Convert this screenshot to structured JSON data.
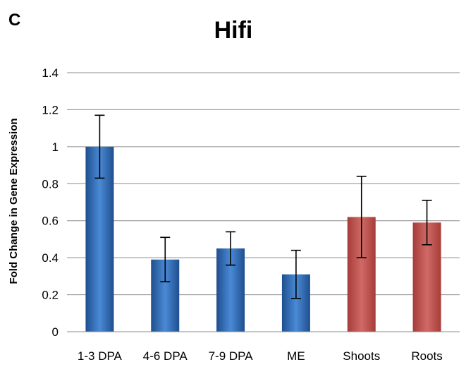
{
  "panel_letter": "C",
  "chart_data": {
    "type": "bar",
    "title": "Hifi",
    "xlabel": "",
    "ylabel": "Fold Change in Gene Expression",
    "categories": [
      "1-3 DPA",
      "4-6 DPA",
      "7-9 DPA",
      "ME",
      "Shoots",
      "Roots"
    ],
    "values": [
      1.0,
      0.39,
      0.45,
      0.31,
      0.62,
      0.59
    ],
    "errors": [
      0.17,
      0.12,
      0.09,
      0.13,
      0.22,
      0.12
    ],
    "colors": [
      "#2e6bb8",
      "#2e6bb8",
      "#2e6bb8",
      "#2e6bb8",
      "#c0504d",
      "#c0504d"
    ],
    "ylim": [
      0,
      1.4
    ],
    "yticks": [
      "0",
      "0.2",
      "0.4",
      "0.6",
      "0.8",
      "1",
      "1.2",
      "1.4"
    ],
    "ytick_values": [
      0,
      0.2,
      0.4,
      0.6,
      0.8,
      1.0,
      1.2,
      1.4
    ],
    "grid": true,
    "legend": "none"
  }
}
